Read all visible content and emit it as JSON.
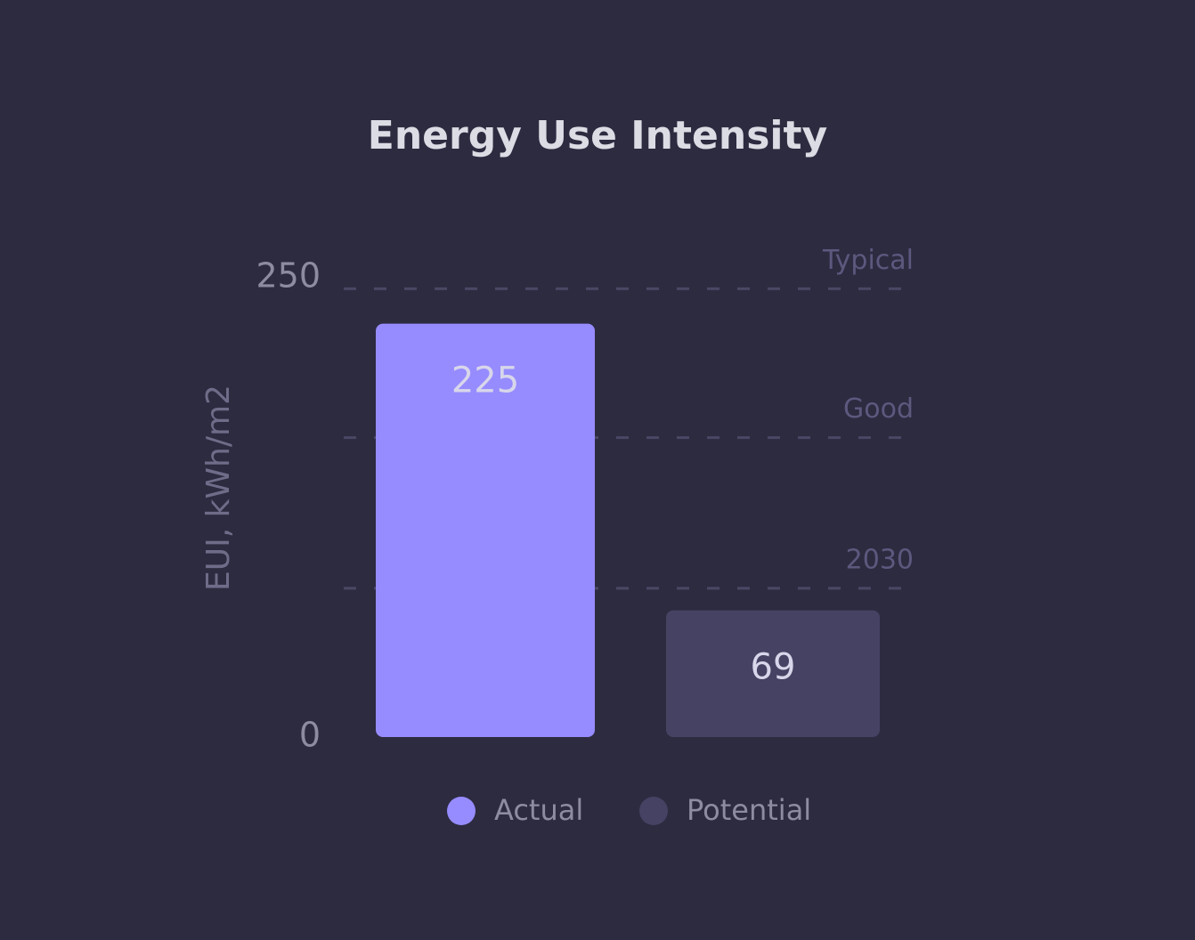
{
  "chart_data": {
    "type": "bar",
    "title": "Energy Use Intensity",
    "y_label": "EUI, kWh/m2",
    "ylim": [
      0,
      250
    ],
    "yticks": [
      0,
      250
    ],
    "series": [
      {
        "name": "Actual",
        "color": "#968cff",
        "values": [
          225
        ]
      },
      {
        "name": "Potential",
        "color": "#454263",
        "values": [
          69
        ]
      }
    ],
    "reference_lines": [
      {
        "label": "Typical",
        "value": 244
      },
      {
        "label": "Good",
        "value": 163
      },
      {
        "label": "2030",
        "value": 81
      }
    ]
  }
}
